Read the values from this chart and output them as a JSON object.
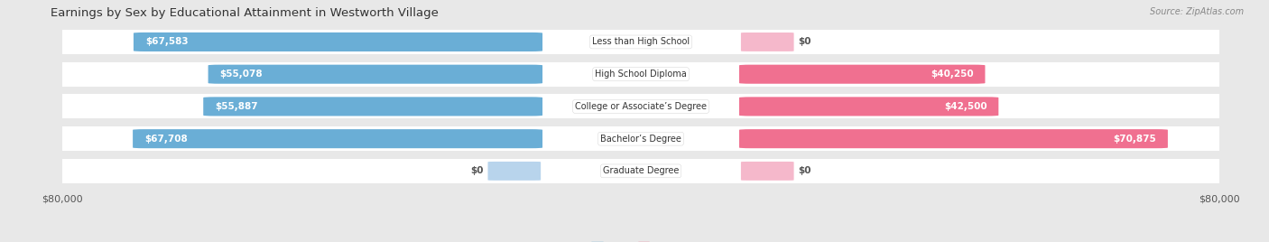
{
  "title": "Earnings by Sex by Educational Attainment in Westworth Village",
  "source": "Source: ZipAtlas.com",
  "categories": [
    "Less than High School",
    "High School Diploma",
    "College or Associate’s Degree",
    "Bachelor’s Degree",
    "Graduate Degree"
  ],
  "male_values": [
    67583,
    55078,
    55887,
    67708,
    0
  ],
  "female_values": [
    0,
    40250,
    42500,
    70875,
    0
  ],
  "male_labels": [
    "$67,583",
    "$55,078",
    "$55,887",
    "$67,708",
    "$0"
  ],
  "female_labels": [
    "$0",
    "$40,250",
    "$42,500",
    "$70,875",
    "$0"
  ],
  "male_color": "#6aaed6",
  "female_color": "#f07090",
  "male_color_light": "#b8d4ec",
  "female_color_light": "#f5b8cb",
  "max_val": 80000,
  "bg_color": "#e8e8e8",
  "row_bg_color": "#ffffff",
  "title_fontsize": 9.5,
  "label_fontsize": 7.5,
  "tick_fontsize": 8
}
